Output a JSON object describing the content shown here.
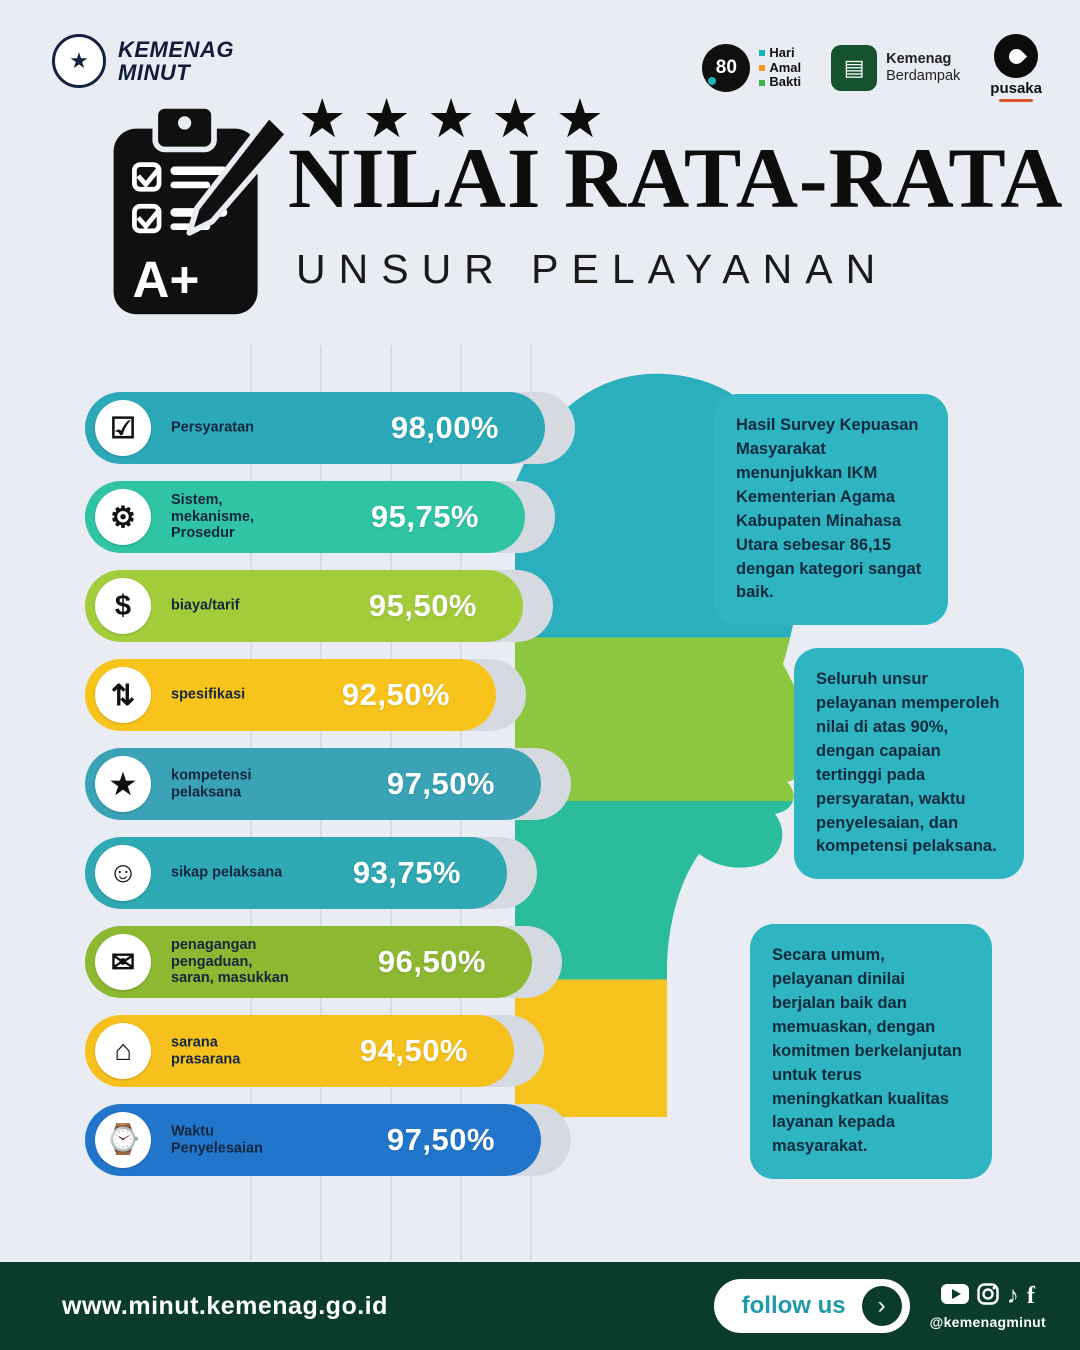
{
  "page": {
    "background": "#E9EDF3"
  },
  "header": {
    "brand": {
      "line1": "KEMENAG",
      "line2": "MINUT"
    },
    "partners": {
      "hab": {
        "circle_number": "80",
        "words": [
          "Hari",
          "Amal",
          "Bakti"
        ]
      },
      "kemenag_berdampak": {
        "line1": "Kemenag",
        "line2": "Berdampak"
      },
      "pusaka": {
        "label": "pusaka"
      }
    }
  },
  "title": {
    "stars": 5,
    "star_glyph": "★",
    "main": "NILAI RATA-RATA",
    "subtitle": "UNSUR PELAYANAN"
  },
  "chart_data": {
    "type": "bar",
    "orientation": "horizontal",
    "unit": "%",
    "value_range": [
      0,
      100
    ],
    "categories": [
      "Persyaratan",
      "Sistem, mekanisme, Prosedur",
      "biaya/tarif",
      "spesifikasi",
      "kompetensi pelaksana",
      "sikap pelaksana",
      "penagangan pengaduan, saran, masukkan",
      "sarana prasarana",
      "Waktu Penyelesaian"
    ],
    "values": [
      98.0,
      95.75,
      95.5,
      92.5,
      97.5,
      93.75,
      96.5,
      94.5,
      97.5
    ],
    "value_labels": [
      "98,00%",
      "95,75%",
      "95,50%",
      "92,50%",
      "97,50%",
      "93,75%",
      "96,50%",
      "94,50%",
      "97,50%"
    ],
    "bar_colors": [
      "#2BA9B8",
      "#2EC4A4",
      "#A3CC3B",
      "#F8C41C",
      "#3AA3B6",
      "#2FA9B4",
      "#8CB832",
      "#F6C11D",
      "#2176CC"
    ],
    "icons": [
      "document-check-icon",
      "gear-icon",
      "cost-tariff-icon",
      "spec-arrows-icon",
      "star-badge-icon",
      "smiley-icon",
      "complaint-handling-icon",
      "building-icon",
      "watch-icon"
    ],
    "icon_glyphs": [
      "☑",
      "⚙",
      "$",
      "⇅",
      "★",
      "☺",
      "✉",
      "⌂",
      "⌚"
    ]
  },
  "callouts": [
    {
      "segments": [
        {
          "t": "Hasil Survey Kepuasan Masyarakat menunjukkan IKM Kementerian Agama Kabupaten Minahasa Utara sebesar "
        },
        {
          "t": "86,15",
          "b": true
        },
        {
          "t": " dengan kategori "
        },
        {
          "t": "sangat baik.",
          "b": true
        }
      ]
    },
    {
      "segments": [
        {
          "t": "Seluruh unsur pelayanan memperoleh nilai di atas "
        },
        {
          "t": "90%",
          "b": true
        },
        {
          "t": ", dengan capaian tertinggi pada persyaratan, waktu penyelesaian, dan kompetensi pelaksana."
        }
      ]
    },
    {
      "segments": [
        {
          "t": "Secara umum, pelayanan dinilai berjalan baik dan memuaskan, dengan komitmen berkelanjutan untuk terus meningkatkan kualitas layanan kepada masyarakat."
        }
      ]
    }
  ],
  "footer": {
    "website": "www.minut.kemenag.go.id",
    "follow_label": "follow us",
    "arrow_glyph": "›",
    "handle": "@kemenagminut",
    "socials": [
      "youtube",
      "instagram",
      "tiktok",
      "facebook"
    ]
  },
  "colors": {
    "callout_teal": "#2EB5C1",
    "footer_green": "#0A3B2B",
    "face_bands": [
      "#2BAEBD",
      "#8DC63F",
      "#2BBD9B",
      "#F7C31C"
    ]
  }
}
